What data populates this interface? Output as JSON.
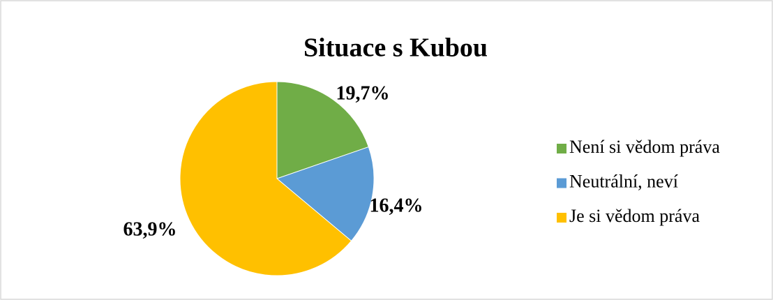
{
  "chart_data": {
    "type": "pie",
    "title": "Situace s Kubou",
    "categories": [
      "Není si vědom práva",
      "Neutrální, neví",
      "Je si vědom práva"
    ],
    "values": [
      19.7,
      16.4,
      63.9
    ],
    "value_labels": [
      "19,7%",
      "16,4%",
      "63,9%"
    ],
    "colors": [
      "#70ad47",
      "#5b9bd5",
      "#ffc000"
    ],
    "legend": "right"
  }
}
